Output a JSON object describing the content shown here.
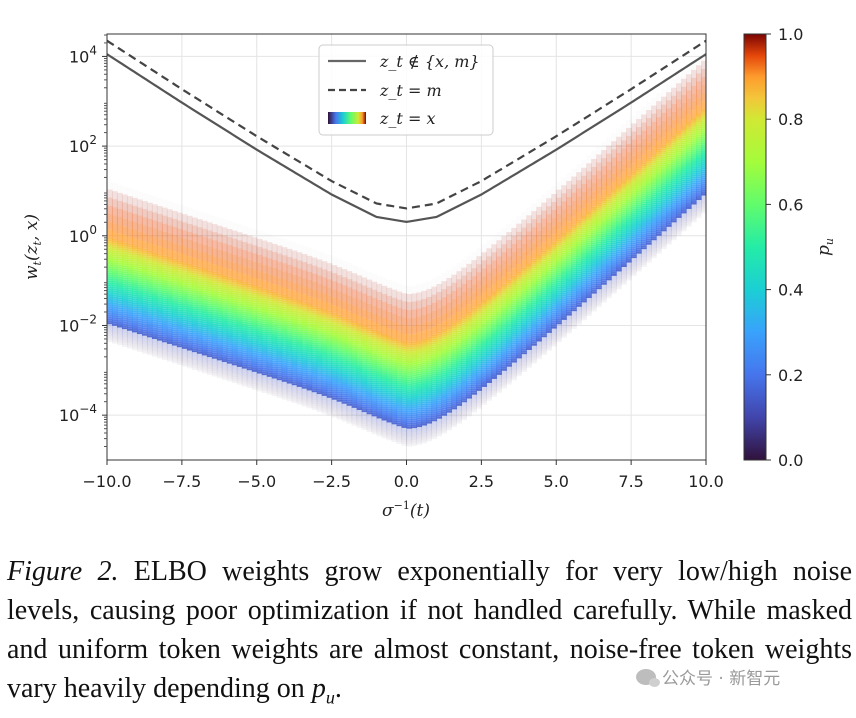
{
  "chart_data": {
    "type": "line",
    "x_label": "σ⁻¹(t)",
    "y_label": "w_t(z_t, x)",
    "y_scale": "log",
    "xlim": [
      -10,
      10
    ],
    "ylim_log10": [
      -5,
      4.5
    ],
    "x_ticks": [
      "−10.0",
      "−7.5",
      "−5.0",
      "−2.5",
      "0.0",
      "2.5",
      "5.0",
      "7.5",
      "10.0"
    ],
    "y_ticks": [
      {
        "base": "10",
        "exp": "4"
      },
      {
        "base": "10",
        "exp": "2"
      },
      {
        "base": "10",
        "exp": "0"
      },
      {
        "base": "10",
        "exp": "−2"
      },
      {
        "base": "10",
        "exp": "−4"
      }
    ],
    "grid": true,
    "legend": {
      "placement": "top-center",
      "entries": [
        {
          "label": "z_t ∉ {x, m}",
          "style": "solid"
        },
        {
          "label": "z_t = m",
          "style": "dashed"
        },
        {
          "label": "z_t = x",
          "style": "colormap"
        }
      ]
    },
    "colorbar": {
      "label": "p_u",
      "ticks": [
        "0.0",
        "0.2",
        "0.4",
        "0.6",
        "0.8",
        "1.0"
      ],
      "colormap": "turbo"
    },
    "series": [
      {
        "name": "z_t ∉ {x, m}",
        "style": "solid",
        "color": "#555555",
        "x": [
          -10,
          -7.5,
          -5,
          -2.5,
          -1,
          0,
          1,
          2.5,
          5,
          7.5,
          10
        ],
        "log10_y": [
          4.05,
          2.97,
          1.92,
          0.92,
          0.42,
          0.31,
          0.42,
          0.92,
          1.92,
          2.97,
          4.05
        ]
      },
      {
        "name": "z_t = m",
        "style": "dashed",
        "color": "#444444",
        "x": [
          -10,
          -7.5,
          -5,
          -2.5,
          -1,
          0,
          1,
          2.5,
          5,
          7.5,
          10
        ],
        "log10_y": [
          4.35,
          3.27,
          2.22,
          1.22,
          0.72,
          0.61,
          0.72,
          1.22,
          2.22,
          3.27,
          4.35
        ]
      }
    ]
  },
  "caption": {
    "lead": "Figure 2.",
    "text_before_var": " ELBO weights grow exponentially for very low/high noise levels, causing poor optimization if not handled carefully. While masked and uniform token weights are almost constant, noise-free token weights vary heavily depending on ",
    "var": "p",
    "var_sub": "u",
    "text_after_var": "."
  },
  "watermark": "公众号 · 新智元"
}
